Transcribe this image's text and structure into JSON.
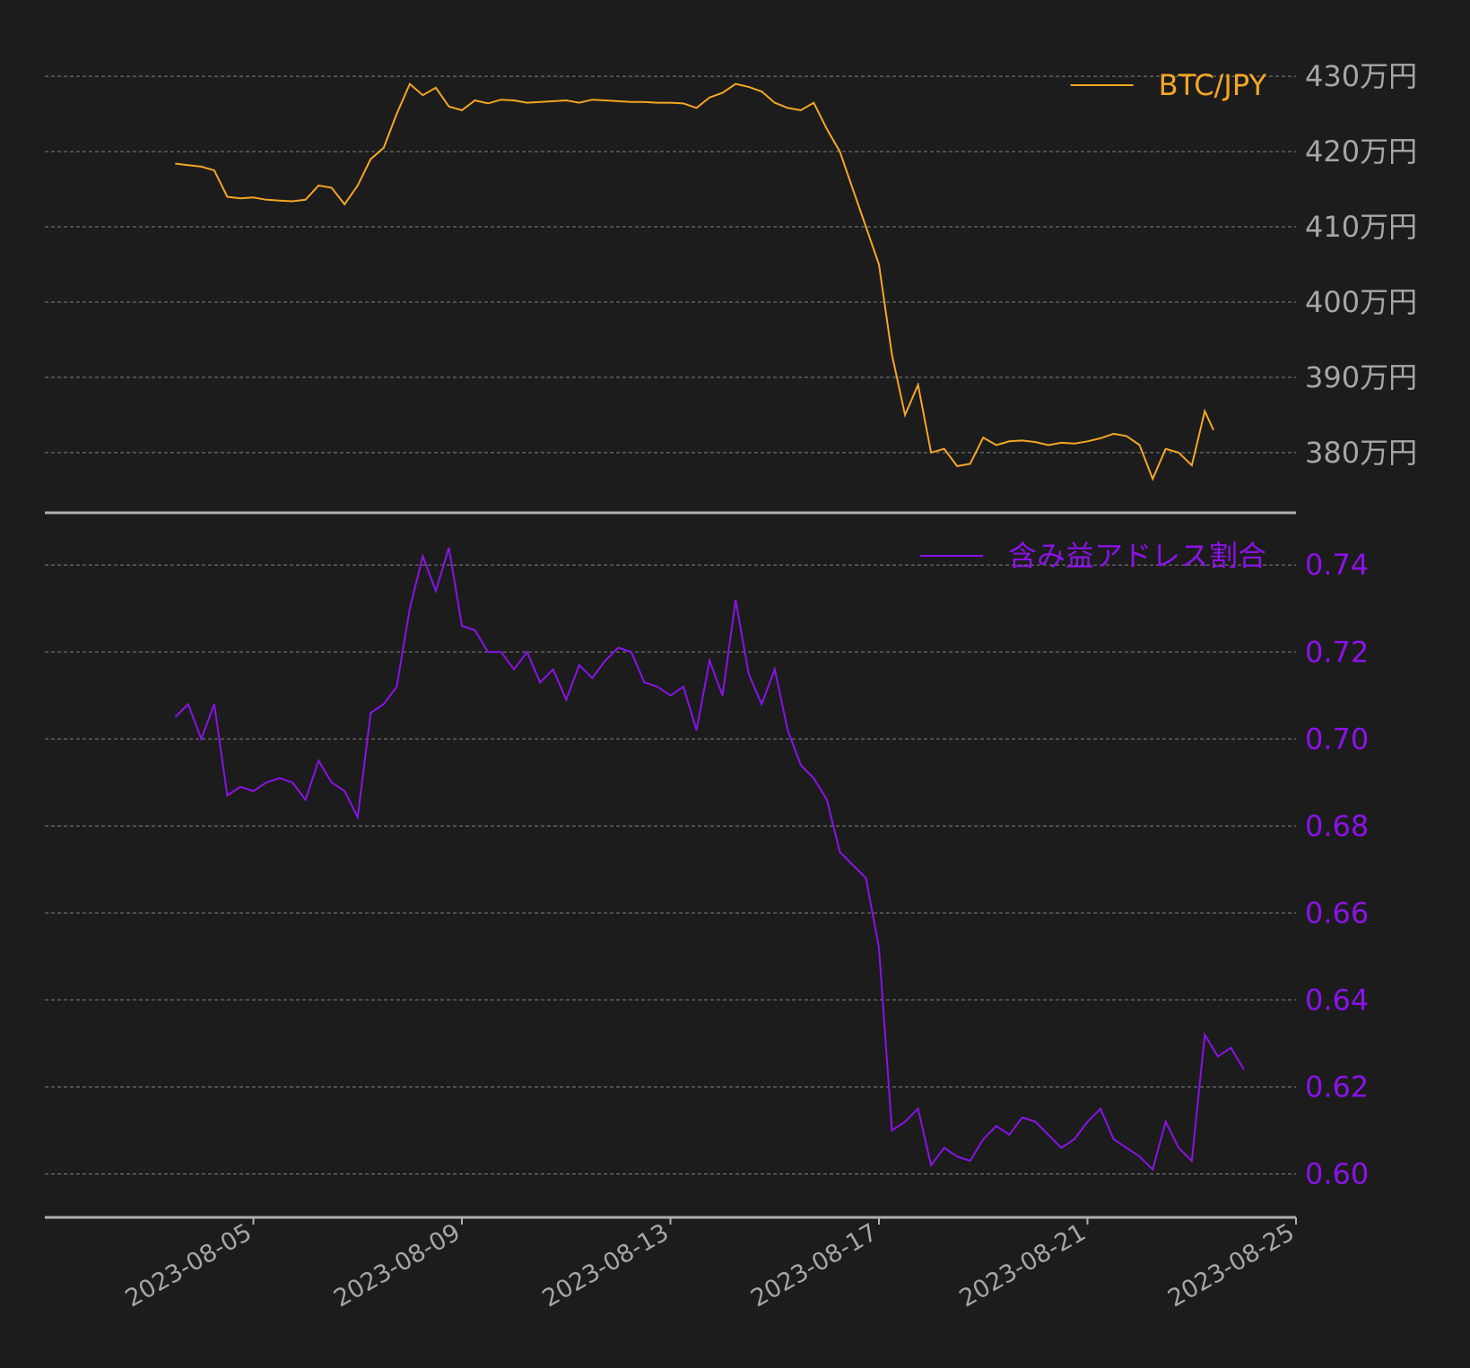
{
  "colors": {
    "background": "#1c1c1c",
    "grid": "#9a9a9a",
    "axis": "#b0b0b0",
    "tick_text": "#a6a6a6",
    "btc": "#f5a623",
    "ratio": "#8b12e8"
  },
  "chart_data": [
    {
      "type": "line",
      "legend": "BTC/JPY",
      "legend_position": "top-right",
      "ylim": [
        372,
        433
      ],
      "y_ticks": [
        430,
        420,
        410,
        400,
        390,
        380
      ],
      "y_tick_labels": [
        "430万円",
        "420万円",
        "410万円",
        "400万円",
        "390万円",
        "380万円"
      ],
      "grid": true,
      "series": [
        {
          "name": "BTC/JPY",
          "unit": "万円",
          "points": [
            [
              "2023-08-03 12:00",
              418.4
            ],
            [
              "2023-08-03 18:00",
              418.2
            ],
            [
              "2023-08-04 00:00",
              418.0
            ],
            [
              "2023-08-04 06:00",
              417.5
            ],
            [
              "2023-08-04 12:00",
              414.0
            ],
            [
              "2023-08-04 18:00",
              413.8
            ],
            [
              "2023-08-05 00:00",
              413.9
            ],
            [
              "2023-08-05 06:00",
              413.6
            ],
            [
              "2023-08-05 12:00",
              413.5
            ],
            [
              "2023-08-05 18:00",
              413.4
            ],
            [
              "2023-08-06 00:00",
              413.6
            ],
            [
              "2023-08-06 06:00",
              415.5
            ],
            [
              "2023-08-06 12:00",
              415.2
            ],
            [
              "2023-08-06 18:00",
              413.0
            ],
            [
              "2023-08-07 00:00",
              415.5
            ],
            [
              "2023-08-07 06:00",
              419.0
            ],
            [
              "2023-08-07 12:00",
              420.5
            ],
            [
              "2023-08-07 18:00",
              425.0
            ],
            [
              "2023-08-08 00:00",
              429.0
            ],
            [
              "2023-08-08 06:00",
              427.5
            ],
            [
              "2023-08-08 12:00",
              428.5
            ],
            [
              "2023-08-08 18:00",
              426.0
            ],
            [
              "2023-08-09 00:00",
              425.5
            ],
            [
              "2023-08-09 06:00",
              426.8
            ],
            [
              "2023-08-09 12:00",
              426.4
            ],
            [
              "2023-08-09 18:00",
              426.9
            ],
            [
              "2023-08-10 00:00",
              426.8
            ],
            [
              "2023-08-10 06:00",
              426.5
            ],
            [
              "2023-08-10 12:00",
              426.6
            ],
            [
              "2023-08-10 18:00",
              426.7
            ],
            [
              "2023-08-11 00:00",
              426.8
            ],
            [
              "2023-08-11 06:00",
              426.5
            ],
            [
              "2023-08-11 12:00",
              426.9
            ],
            [
              "2023-08-11 18:00",
              426.8
            ],
            [
              "2023-08-12 00:00",
              426.7
            ],
            [
              "2023-08-12 06:00",
              426.6
            ],
            [
              "2023-08-12 12:00",
              426.6
            ],
            [
              "2023-08-12 18:00",
              426.5
            ],
            [
              "2023-08-13 00:00",
              426.5
            ],
            [
              "2023-08-13 06:00",
              426.4
            ],
            [
              "2023-08-13 12:00",
              425.8
            ],
            [
              "2023-08-13 18:00",
              427.2
            ],
            [
              "2023-08-14 00:00",
              427.8
            ],
            [
              "2023-08-14 06:00",
              429.0
            ],
            [
              "2023-08-14 12:00",
              428.6
            ],
            [
              "2023-08-14 18:00",
              428.0
            ],
            [
              "2023-08-15 00:00",
              426.5
            ],
            [
              "2023-08-15 06:00",
              425.8
            ],
            [
              "2023-08-15 12:00",
              425.5
            ],
            [
              "2023-08-15 18:00",
              426.5
            ],
            [
              "2023-08-16 00:00",
              423.0
            ],
            [
              "2023-08-16 06:00",
              420.0
            ],
            [
              "2023-08-16 12:00",
              415.0
            ],
            [
              "2023-08-16 18:00",
              410.0
            ],
            [
              "2023-08-17 00:00",
              405.0
            ],
            [
              "2023-08-17 06:00",
              393.0
            ],
            [
              "2023-08-17 12:00",
              385.0
            ],
            [
              "2023-08-17 18:00",
              389.0
            ],
            [
              "2023-08-18 00:00",
              380.0
            ],
            [
              "2023-08-18 06:00",
              380.5
            ],
            [
              "2023-08-18 12:00",
              378.2
            ],
            [
              "2023-08-18 18:00",
              378.5
            ],
            [
              "2023-08-19 00:00",
              382.0
            ],
            [
              "2023-08-19 06:00",
              381.0
            ],
            [
              "2023-08-19 12:00",
              381.5
            ],
            [
              "2023-08-19 18:00",
              381.6
            ],
            [
              "2023-08-20 00:00",
              381.4
            ],
            [
              "2023-08-20 06:00",
              381.0
            ],
            [
              "2023-08-20 12:00",
              381.3
            ],
            [
              "2023-08-20 18:00",
              381.2
            ],
            [
              "2023-08-21 00:00",
              381.5
            ],
            [
              "2023-08-21 06:00",
              381.9
            ],
            [
              "2023-08-21 12:00",
              382.5
            ],
            [
              "2023-08-21 18:00",
              382.2
            ],
            [
              "2023-08-22 00:00",
              381.0
            ],
            [
              "2023-08-22 06:00",
              376.5
            ],
            [
              "2023-08-22 12:00",
              380.5
            ],
            [
              "2023-08-22 18:00",
              380.0
            ],
            [
              "2023-08-23 00:00",
              378.3
            ],
            [
              "2023-08-23 06:00",
              385.5
            ],
            [
              "2023-08-23 10:00",
              383.0
            ]
          ]
        }
      ]
    },
    {
      "type": "line",
      "legend": "含み益アドレス割合",
      "legend_position": "top-right",
      "ylim": [
        0.59,
        0.752
      ],
      "y_ticks": [
        0.74,
        0.72,
        0.7,
        0.68,
        0.66,
        0.64,
        0.62,
        0.6
      ],
      "y_tick_labels": [
        "0.74",
        "0.72",
        "0.70",
        "0.68",
        "0.66",
        "0.64",
        "0.62",
        "0.60"
      ],
      "x_ticks": [
        "2023-08-05",
        "2023-08-09",
        "2023-08-13",
        "2023-08-17",
        "2023-08-21",
        "2023-08-25"
      ],
      "grid": true,
      "series": [
        {
          "name": "含み益アドレス割合",
          "points": [
            [
              "2023-08-03 12:00",
              0.705
            ],
            [
              "2023-08-03 18:00",
              0.708
            ],
            [
              "2023-08-04 00:00",
              0.7
            ],
            [
              "2023-08-04 06:00",
              0.708
            ],
            [
              "2023-08-04 12:00",
              0.687
            ],
            [
              "2023-08-04 18:00",
              0.689
            ],
            [
              "2023-08-05 00:00",
              0.688
            ],
            [
              "2023-08-05 06:00",
              0.69
            ],
            [
              "2023-08-05 12:00",
              0.691
            ],
            [
              "2023-08-05 18:00",
              0.69
            ],
            [
              "2023-08-06 00:00",
              0.686
            ],
            [
              "2023-08-06 06:00",
              0.695
            ],
            [
              "2023-08-06 12:00",
              0.69
            ],
            [
              "2023-08-06 18:00",
              0.688
            ],
            [
              "2023-08-07 00:00",
              0.682
            ],
            [
              "2023-08-07 06:00",
              0.706
            ],
            [
              "2023-08-07 12:00",
              0.708
            ],
            [
              "2023-08-07 18:00",
              0.712
            ],
            [
              "2023-08-08 00:00",
              0.73
            ],
            [
              "2023-08-08 06:00",
              0.742
            ],
            [
              "2023-08-08 12:00",
              0.734
            ],
            [
              "2023-08-08 18:00",
              0.744
            ],
            [
              "2023-08-09 00:00",
              0.726
            ],
            [
              "2023-08-09 06:00",
              0.725
            ],
            [
              "2023-08-09 12:00",
              0.72
            ],
            [
              "2023-08-09 18:00",
              0.72
            ],
            [
              "2023-08-10 00:00",
              0.716
            ],
            [
              "2023-08-10 06:00",
              0.72
            ],
            [
              "2023-08-10 12:00",
              0.713
            ],
            [
              "2023-08-10 18:00",
              0.716
            ],
            [
              "2023-08-11 00:00",
              0.709
            ],
            [
              "2023-08-11 06:00",
              0.717
            ],
            [
              "2023-08-11 12:00",
              0.714
            ],
            [
              "2023-08-11 18:00",
              0.718
            ],
            [
              "2023-08-12 00:00",
              0.721
            ],
            [
              "2023-08-12 06:00",
              0.72
            ],
            [
              "2023-08-12 12:00",
              0.713
            ],
            [
              "2023-08-12 18:00",
              0.712
            ],
            [
              "2023-08-13 00:00",
              0.71
            ],
            [
              "2023-08-13 06:00",
              0.712
            ],
            [
              "2023-08-13 12:00",
              0.702
            ],
            [
              "2023-08-13 18:00",
              0.718
            ],
            [
              "2023-08-14 00:00",
              0.71
            ],
            [
              "2023-08-14 06:00",
              0.732
            ],
            [
              "2023-08-14 12:00",
              0.715
            ],
            [
              "2023-08-14 18:00",
              0.708
            ],
            [
              "2023-08-15 00:00",
              0.716
            ],
            [
              "2023-08-15 06:00",
              0.702
            ],
            [
              "2023-08-15 12:00",
              0.694
            ],
            [
              "2023-08-15 18:00",
              0.691
            ],
            [
              "2023-08-16 00:00",
              0.686
            ],
            [
              "2023-08-16 06:00",
              0.674
            ],
            [
              "2023-08-16 12:00",
              0.671
            ],
            [
              "2023-08-16 18:00",
              0.668
            ],
            [
              "2023-08-17 00:00",
              0.652
            ],
            [
              "2023-08-17 06:00",
              0.61
            ],
            [
              "2023-08-17 12:00",
              0.612
            ],
            [
              "2023-08-17 18:00",
              0.615
            ],
            [
              "2023-08-18 00:00",
              0.602
            ],
            [
              "2023-08-18 06:00",
              0.606
            ],
            [
              "2023-08-18 12:00",
              0.604
            ],
            [
              "2023-08-18 18:00",
              0.603
            ],
            [
              "2023-08-19 00:00",
              0.608
            ],
            [
              "2023-08-19 06:00",
              0.611
            ],
            [
              "2023-08-19 12:00",
              0.609
            ],
            [
              "2023-08-19 18:00",
              0.613
            ],
            [
              "2023-08-20 00:00",
              0.612
            ],
            [
              "2023-08-20 06:00",
              0.609
            ],
            [
              "2023-08-20 12:00",
              0.606
            ],
            [
              "2023-08-20 18:00",
              0.608
            ],
            [
              "2023-08-21 00:00",
              0.612
            ],
            [
              "2023-08-21 06:00",
              0.615
            ],
            [
              "2023-08-21 12:00",
              0.608
            ],
            [
              "2023-08-21 18:00",
              0.606
            ],
            [
              "2023-08-22 00:00",
              0.604
            ],
            [
              "2023-08-22 06:00",
              0.601
            ],
            [
              "2023-08-22 12:00",
              0.612
            ],
            [
              "2023-08-22 18:00",
              0.606
            ],
            [
              "2023-08-23 00:00",
              0.603
            ],
            [
              "2023-08-23 06:00",
              0.632
            ],
            [
              "2023-08-23 12:00",
              0.627
            ],
            [
              "2023-08-23 18:00",
              0.629
            ],
            [
              "2023-08-24 00:00",
              0.624
            ]
          ]
        }
      ]
    }
  ]
}
